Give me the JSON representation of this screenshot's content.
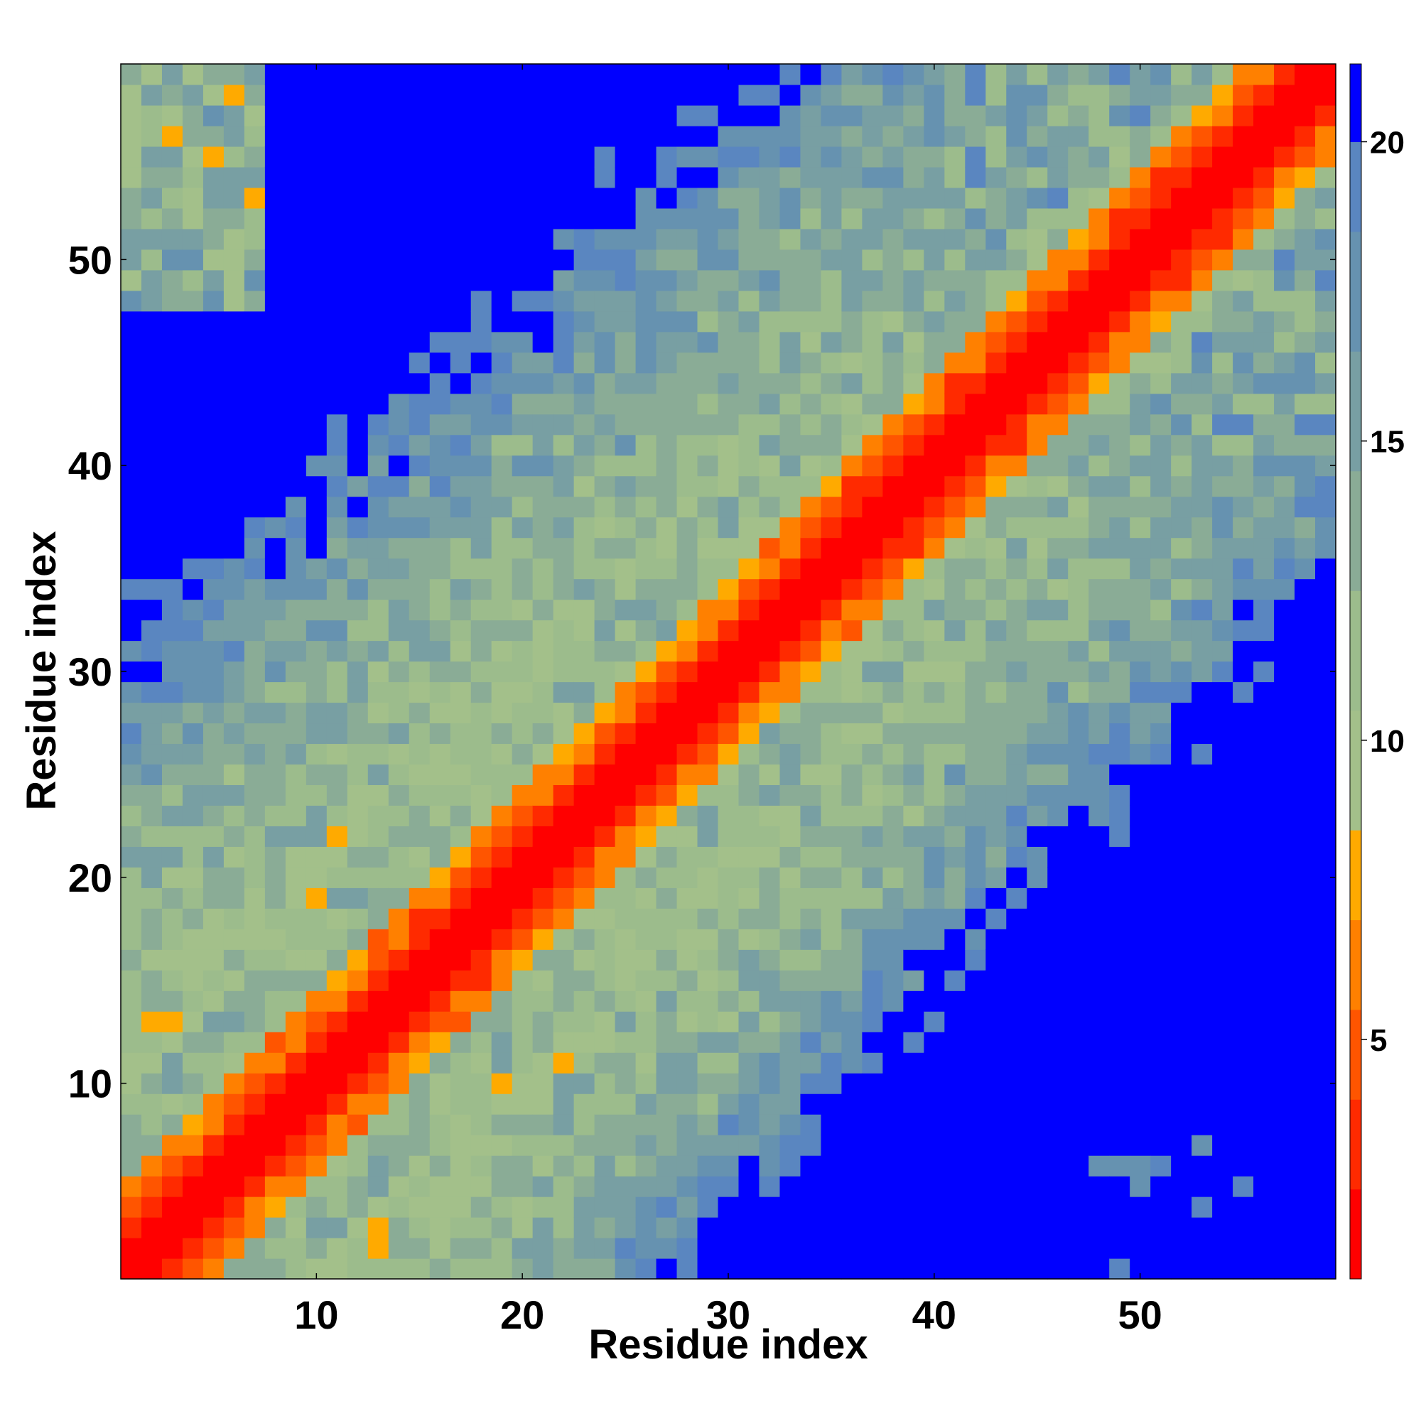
{
  "chart_data": {
    "type": "heatmap",
    "title": "",
    "xlabel": "Residue index",
    "ylabel": "Residue index",
    "n_residues": 59,
    "x_ticks": [
      10,
      20,
      30,
      40,
      50
    ],
    "y_ticks": [
      10,
      20,
      30,
      40,
      50
    ],
    "colorbar": {
      "range": [
        1.0,
        21.3
      ],
      "ticks": [
        5,
        10,
        15,
        20
      ],
      "bands": [
        {
          "from": 1.0,
          "to": 2.5,
          "color": "#ff0000"
        },
        {
          "from": 2.5,
          "to": 4.0,
          "color": "#ff2a00"
        },
        {
          "from": 4.0,
          "to": 5.5,
          "color": "#ff5500"
        },
        {
          "from": 5.5,
          "to": 7.0,
          "color": "#ff8000"
        },
        {
          "from": 7.0,
          "to": 8.5,
          "color": "#ffaa00"
        },
        {
          "from": 8.5,
          "to": 10.5,
          "color": "#a3c08a"
        },
        {
          "from": 10.5,
          "to": 12.5,
          "color": "#9cbc8c"
        },
        {
          "from": 12.5,
          "to": 14.5,
          "color": "#8aac96"
        },
        {
          "from": 14.5,
          "to": 16.5,
          "color": "#789fa3"
        },
        {
          "from": 16.5,
          "to": 18.5,
          "color": "#6692b0"
        },
        {
          "from": 18.5,
          "to": 20.0,
          "color": "#5a86c0"
        },
        {
          "from": 20.0,
          "to": 21.3,
          "color": "#0000ff"
        }
      ]
    },
    "distance_model": {
      "description": "cell value d(i,j) approximated from the visible pattern: near-diagonal red band, orange shell, green/steel-blue middle, blue (>20) far from diagonal; bottom-right corner blue, anti-diagonal corners partly green",
      "diagonal_red_width": 2,
      "orange_width": 4,
      "green_width": 10,
      "cutoff": 20
    }
  }
}
